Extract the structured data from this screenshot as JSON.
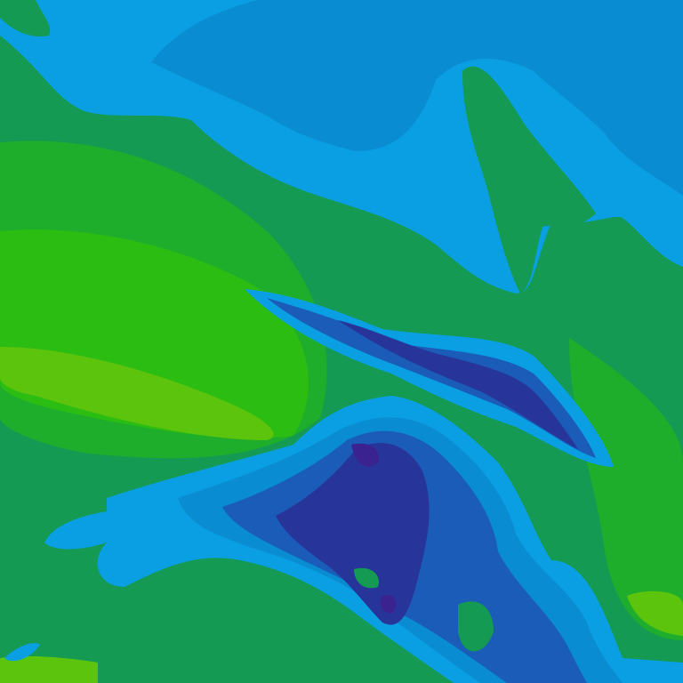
{
  "map": {
    "palette": {
      "lowland_green": "#149a52",
      "mid_green": "#1fae2c",
      "bright_green": "#2cbd12",
      "yellow_green": "#5cc40c",
      "light_blue": "#0a9fe2",
      "mid_blue": "#0a8cd2",
      "deep_blue": "#1a5cb8",
      "navy": "#27359a",
      "purple": "#3a2390"
    }
  }
}
